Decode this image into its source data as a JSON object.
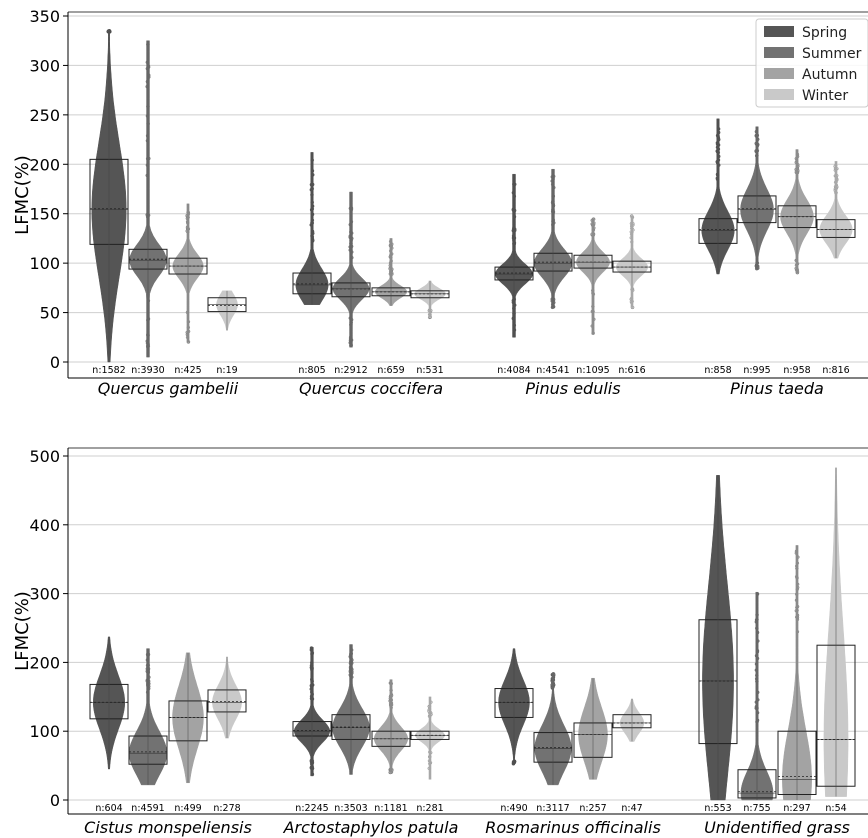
{
  "chart_data": [
    {
      "type": "violin",
      "ylabel": "LFMC(%)",
      "ylim": [
        0,
        350
      ],
      "yticks": [
        0,
        50,
        100,
        150,
        200,
        250,
        300,
        350
      ],
      "grid": true,
      "legend": {
        "position": "top-right",
        "entries": [
          {
            "name": "Spring",
            "color": "#555555"
          },
          {
            "name": "Summer",
            "color": "#727272"
          },
          {
            "name": "Autumn",
            "color": "#a3a3a3"
          },
          {
            "name": "Winter",
            "color": "#c9c9c9"
          }
        ]
      },
      "groups": [
        {
          "label": "Quercus gambelii",
          "seasons": [
            {
              "n": "n:1582",
              "min": 0,
              "max": 335,
              "q1": 119,
              "median": 154,
              "q3": 205,
              "mean": 155
            },
            {
              "n": "n:3930",
              "min": 5,
              "max": 325,
              "q1": 94,
              "median": 103,
              "q3": 114,
              "mean": 104
            },
            {
              "n": "n:425",
              "min": 20,
              "max": 160,
              "q1": 89,
              "median": 97,
              "q3": 105,
              "mean": 97
            },
            {
              "n": "n:19",
              "min": 32,
              "max": 72,
              "q1": 51,
              "median": 58,
              "q3": 65,
              "mean": 57
            }
          ]
        },
        {
          "label": "Quercus coccifera",
          "seasons": [
            {
              "n": "n:805",
              "min": 58,
              "max": 212,
              "q1": 69,
              "median": 78,
              "q3": 90,
              "mean": 79
            },
            {
              "n": "n:2912",
              "min": 15,
              "max": 172,
              "q1": 66,
              "median": 74,
              "q3": 80,
              "mean": 74
            },
            {
              "n": "n:659",
              "min": 57,
              "max": 125,
              "q1": 67,
              "median": 71,
              "q3": 75,
              "mean": 71
            },
            {
              "n": "n:531",
              "min": 45,
              "max": 82,
              "q1": 65,
              "median": 69,
              "q3": 72,
              "mean": 69
            }
          ]
        },
        {
          "label": "Pinus edulis",
          "seasons": [
            {
              "n": "n:4084",
              "min": 25,
              "max": 190,
              "q1": 83,
              "median": 89,
              "q3": 96,
              "mean": 90
            },
            {
              "n": "n:4541",
              "min": 55,
              "max": 195,
              "q1": 92,
              "median": 100,
              "q3": 110,
              "mean": 101
            },
            {
              "n": "n:1095",
              "min": 28,
              "max": 145,
              "q1": 95,
              "median": 101,
              "q3": 108,
              "mean": 101
            },
            {
              "n": "n:616",
              "min": 55,
              "max": 148,
              "q1": 91,
              "median": 96,
              "q3": 102,
              "mean": 96
            }
          ]
        },
        {
          "label": "Pinus taeda",
          "seasons": [
            {
              "n": "n:858",
              "min": 89,
              "max": 246,
              "q1": 120,
              "median": 133,
              "q3": 145,
              "mean": 134
            },
            {
              "n": "n:995",
              "min": 94,
              "max": 238,
              "q1": 141,
              "median": 154,
              "q3": 168,
              "mean": 155
            },
            {
              "n": "n:958",
              "min": 90,
              "max": 215,
              "q1": 136,
              "median": 147,
              "q3": 158,
              "mean": 147
            },
            {
              "n": "n:816",
              "min": 105,
              "max": 203,
              "q1": 126,
              "median": 134,
              "q3": 144,
              "mean": 134
            }
          ]
        }
      ]
    },
    {
      "type": "violin",
      "ylabel": "LFMC(%)",
      "ylim": [
        0,
        500
      ],
      "yticks": [
        0,
        100,
        200,
        300,
        400,
        500
      ],
      "grid": true,
      "groups": [
        {
          "label": "Cistus monspeliensis",
          "seasons": [
            {
              "n": "n:604",
              "min": 45,
              "max": 237,
              "q1": 118,
              "median": 142,
              "q3": 168,
              "mean": 142
            },
            {
              "n": "n:4591",
              "min": 22,
              "max": 220,
              "q1": 52,
              "median": 68,
              "q3": 93,
              "mean": 70
            },
            {
              "n": "n:499",
              "min": 25,
              "max": 214,
              "q1": 86,
              "median": 120,
              "q3": 144,
              "mean": 120
            },
            {
              "n": "n:278",
              "min": 90,
              "max": 208,
              "q1": 128,
              "median": 142,
              "q3": 160,
              "mean": 143
            }
          ]
        },
        {
          "label": "Arctostaphylos patula",
          "seasons": [
            {
              "n": "n:2245",
              "min": 35,
              "max": 222,
              "q1": 93,
              "median": 100,
              "q3": 114,
              "mean": 101
            },
            {
              "n": "n:3503",
              "min": 37,
              "max": 226,
              "q1": 88,
              "median": 105,
              "q3": 124,
              "mean": 106
            },
            {
              "n": "n:1181",
              "min": 40,
              "max": 175,
              "q1": 78,
              "median": 89,
              "q3": 100,
              "mean": 89
            },
            {
              "n": "n:281",
              "min": 30,
              "max": 150,
              "q1": 88,
              "median": 94,
              "q3": 100,
              "mean": 94
            }
          ]
        },
        {
          "label": "Rosmarinus officinalis",
          "seasons": [
            {
              "n": "n:490",
              "min": 52,
              "max": 220,
              "q1": 120,
              "median": 142,
              "q3": 162,
              "mean": 142
            },
            {
              "n": "n:3117",
              "min": 22,
              "max": 185,
              "q1": 55,
              "median": 75,
              "q3": 98,
              "mean": 76
            },
            {
              "n": "n:257",
              "min": 30,
              "max": 177,
              "q1": 62,
              "median": 95,
              "q3": 112,
              "mean": 95
            },
            {
              "n": "n:47",
              "min": 85,
              "max": 147,
              "q1": 105,
              "median": 112,
              "q3": 124,
              "mean": 112
            }
          ]
        },
        {
          "label": "Unidentified grass",
          "seasons": [
            {
              "n": "n:553",
              "min": 0,
              "max": 472,
              "q1": 82,
              "median": 173,
              "q3": 262,
              "mean": 173
            },
            {
              "n": "n:755",
              "min": 0,
              "max": 302,
              "q1": 3,
              "median": 10,
              "q3": 44,
              "mean": 12
            },
            {
              "n": "n:297",
              "min": 0,
              "max": 370,
              "q1": 8,
              "median": 30,
              "q3": 100,
              "mean": 34
            },
            {
              "n": "n:54",
              "min": 5,
              "max": 483,
              "q1": 20,
              "median": 88,
              "q3": 225,
              "mean": 88
            }
          ]
        }
      ]
    }
  ]
}
